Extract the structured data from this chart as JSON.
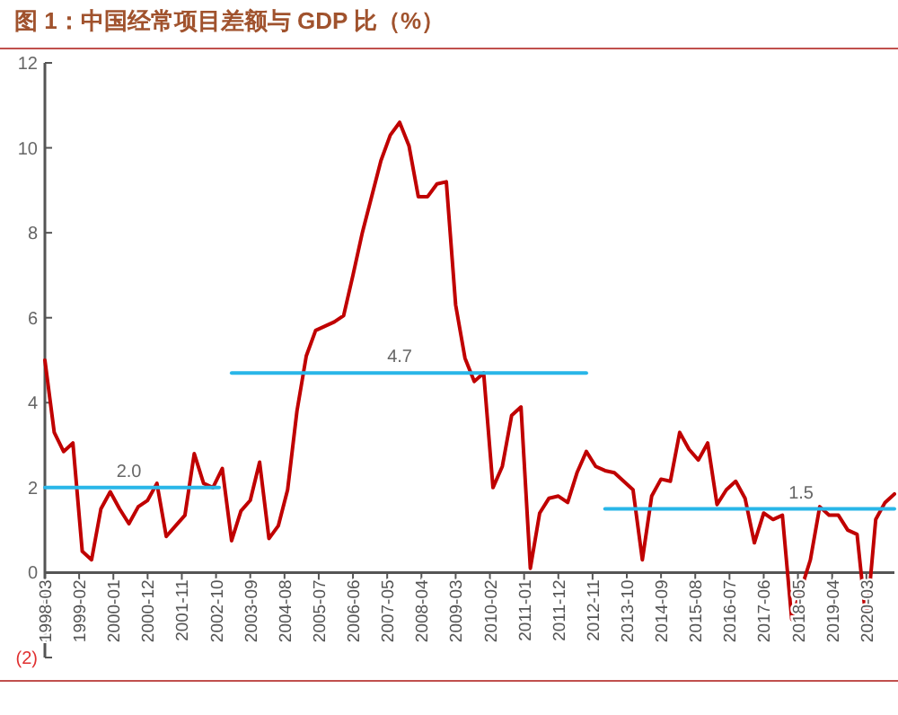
{
  "chart_data": {
    "type": "line",
    "title": "图 1：中国经常项目差额与 GDP 比（%）",
    "xlim": [
      "1998-03",
      "2020-12"
    ],
    "xticks": [
      "1998-03",
      "1999-02",
      "2000-01",
      "2000-12",
      "2001-11",
      "2002-10",
      "2003-09",
      "2004-08",
      "2005-07",
      "2006-06",
      "2007-05",
      "2008-04",
      "2009-03",
      "2010-02",
      "2011-01",
      "2011-12",
      "2012-11",
      "2013-10",
      "2014-09",
      "2015-08",
      "2016-07",
      "2017-06",
      "2018-05",
      "2019-04",
      "2020-03"
    ],
    "ylim": [
      -2,
      12
    ],
    "yticks": [
      {
        "value": -2,
        "label": "(2)"
      },
      0,
      2,
      4,
      6,
      8,
      10,
      12
    ],
    "grid": false,
    "marker": "none",
    "series": [
      {
        "color": "#c00000",
        "line_style": "solid",
        "x": [
          "1998-03",
          "1998-06",
          "1998-09",
          "1998-12",
          "1999-03",
          "1999-06",
          "1999-09",
          "1999-12",
          "2000-03",
          "2000-06",
          "2000-09",
          "2000-12",
          "2001-03",
          "2001-06",
          "2001-09",
          "2001-12",
          "2002-03",
          "2002-06",
          "2002-09",
          "2002-12",
          "2003-03",
          "2003-06",
          "2003-09",
          "2003-12",
          "2004-03",
          "2004-06",
          "2004-09",
          "2004-12",
          "2005-03",
          "2005-06",
          "2005-09",
          "2005-12",
          "2006-03",
          "2006-06",
          "2006-09",
          "2006-12",
          "2007-03",
          "2007-06",
          "2007-09",
          "2007-12",
          "2008-03",
          "2008-06",
          "2008-09",
          "2008-12",
          "2009-03",
          "2009-06",
          "2009-09",
          "2009-12",
          "2010-03",
          "2010-06",
          "2010-09",
          "2010-12",
          "2011-03",
          "2011-06",
          "2011-09",
          "2011-12",
          "2012-03",
          "2012-06",
          "2012-09",
          "2012-12",
          "2013-03",
          "2013-06",
          "2013-09",
          "2013-12",
          "2014-03",
          "2014-06",
          "2014-09",
          "2014-12",
          "2015-03",
          "2015-06",
          "2015-09",
          "2015-12",
          "2016-03",
          "2016-06",
          "2016-09",
          "2016-12",
          "2017-03",
          "2017-06",
          "2017-09",
          "2017-12",
          "2018-03",
          "2018-06",
          "2018-09",
          "2018-12",
          "2019-03",
          "2019-06",
          "2019-09",
          "2019-12",
          "2020-03",
          "2020-06",
          "2020-09",
          "2020-12"
        ],
        "values": [
          5.0,
          3.3,
          2.85,
          3.05,
          0.5,
          0.3,
          1.5,
          1.9,
          1.5,
          1.15,
          1.55,
          1.7,
          2.1,
          0.85,
          1.1,
          1.35,
          2.8,
          2.1,
          2.0,
          2.45,
          0.75,
          1.45,
          1.7,
          2.6,
          0.8,
          1.1,
          1.95,
          3.8,
          5.1,
          5.7,
          5.8,
          5.9,
          6.05,
          7.0,
          8.0,
          8.85,
          9.7,
          10.3,
          10.6,
          10.05,
          8.85,
          8.85,
          9.15,
          9.2,
          6.3,
          5.05,
          4.5,
          4.7,
          2.0,
          2.5,
          3.7,
          3.9,
          0.1,
          1.4,
          1.75,
          1.8,
          1.65,
          2.35,
          2.85,
          2.5,
          2.4,
          2.35,
          2.15,
          1.95,
          0.3,
          1.8,
          2.2,
          2.15,
          3.3,
          2.9,
          2.65,
          3.05,
          1.6,
          1.95,
          2.15,
          1.75,
          0.7,
          1.4,
          1.25,
          1.35,
          -1.1,
          -0.4,
          0.3,
          1.55,
          1.35,
          1.35,
          1.0,
          0.9,
          -1.2,
          1.25,
          1.65,
          1.85
        ]
      },
      {
        "color": "#29b6e8",
        "line_style": "solid",
        "x": [
          "1998-03",
          "2002-11"
        ],
        "values": [
          2.0,
          2.0
        ]
      },
      {
        "color": "#29b6e8",
        "line_style": "solid",
        "x": [
          "2003-03",
          "2012-09"
        ],
        "values": [
          4.7,
          4.7
        ]
      },
      {
        "color": "#29b6e8",
        "line_style": "solid",
        "x": [
          "2013-03",
          "2020-12"
        ],
        "values": [
          1.5,
          1.5
        ]
      }
    ],
    "annotations": [
      {
        "text": "2.0",
        "x": "2000-06",
        "y": 2.0
      },
      {
        "text": "4.7",
        "x": "2007-09",
        "y": 4.7
      },
      {
        "text": "1.5",
        "x": "2018-06",
        "y": 1.5
      }
    ]
  }
}
